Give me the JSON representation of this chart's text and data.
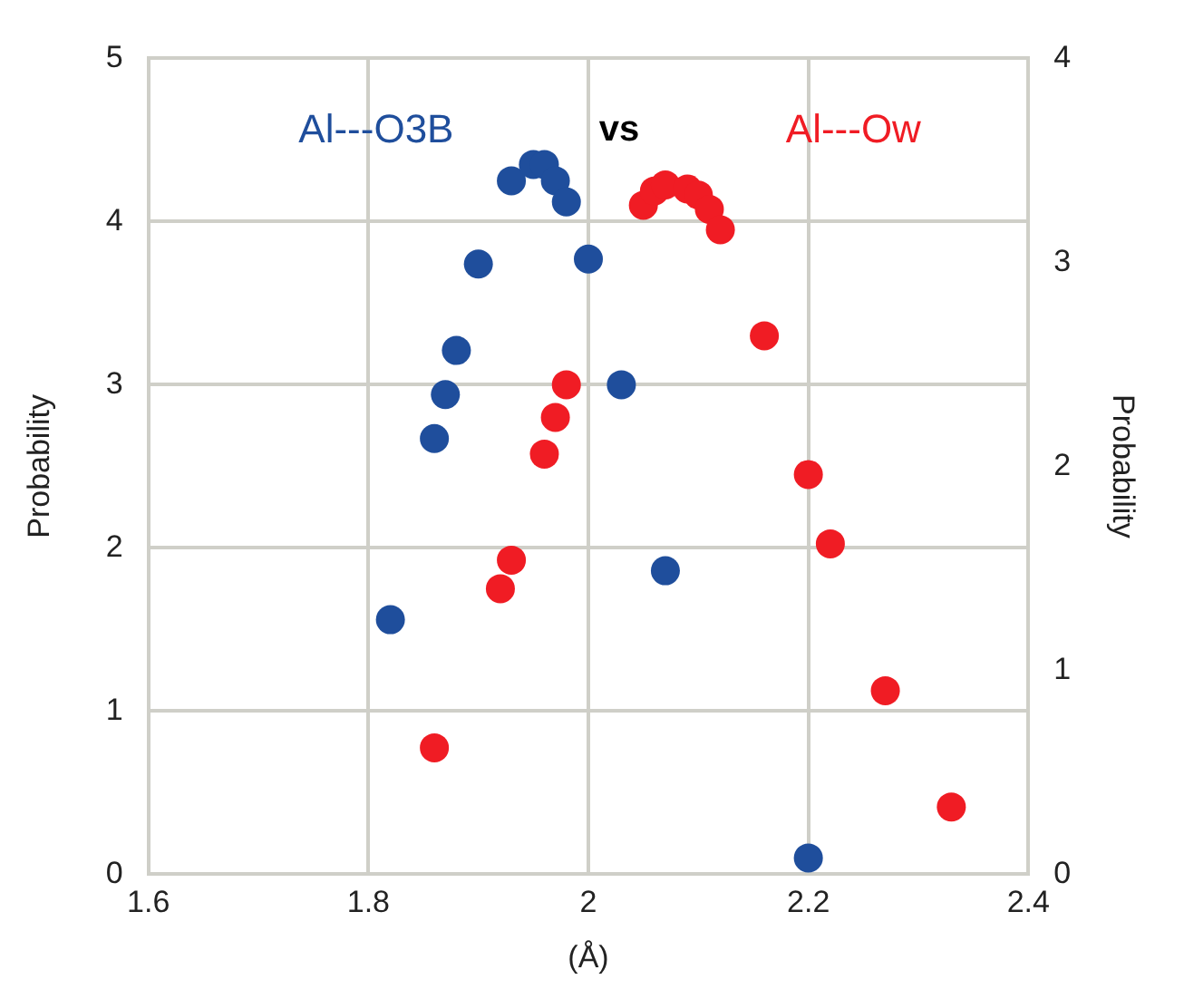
{
  "chart_data": {
    "type": "scatter",
    "xlabel": "(Å)",
    "ylabel": "Probability",
    "y2label": "Probability",
    "annotations": [
      "vs"
    ],
    "series": [
      {
        "name": "Al---O3B",
        "color": "#1f4e9c",
        "x": [
          1.82,
          1.86,
          1.87,
          1.88,
          1.9,
          1.93,
          1.95,
          1.96,
          1.97,
          1.98,
          2.0,
          2.03,
          2.07,
          2.2
        ],
        "values": [
          1.56,
          2.67,
          2.94,
          3.21,
          3.74,
          4.25,
          4.35,
          4.35,
          4.25,
          4.12,
          3.77,
          3.0,
          1.86,
          0.1
        ]
      },
      {
        "name": "Al---Ow",
        "color": "#f01c24",
        "axis": "y2",
        "x": [
          1.86,
          1.92,
          1.93,
          1.96,
          1.97,
          1.98,
          2.05,
          2.06,
          2.07,
          2.09,
          2.1,
          2.11,
          2.12,
          2.16,
          2.2,
          2.22,
          2.27,
          2.33
        ],
        "values": [
          0.62,
          1.4,
          1.54,
          2.06,
          2.24,
          2.4,
          3.28,
          3.35,
          3.38,
          3.36,
          3.33,
          3.26,
          3.16,
          2.64,
          1.96,
          1.62,
          0.9,
          0.33
        ]
      }
    ],
    "xlim": [
      1.6,
      2.4
    ],
    "xticks": [
      1.6,
      1.8,
      2,
      2.2,
      2.4
    ],
    "ylim": [
      0,
      5
    ],
    "yticks": [
      0,
      1,
      2,
      3,
      4,
      5
    ],
    "y2lim": [
      0,
      4
    ],
    "y2ticks": [
      0,
      1,
      2,
      3,
      4
    ],
    "grid": true,
    "marker": "circle",
    "legend": false
  }
}
